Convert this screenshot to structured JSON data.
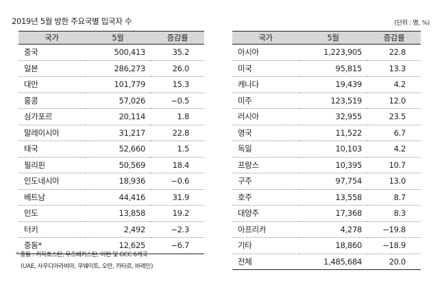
{
  "title": "2019년 5월 방한 주요국별 입국자 수",
  "unit": "(단위 : 명, %)",
  "headers": {
    "country": "국가",
    "may": "5월",
    "rate": "증감률"
  },
  "left_rows": [
    {
      "country": "중국",
      "may": "500,413",
      "rate": "35.2"
    },
    {
      "country": "일본",
      "may": "286,273",
      "rate": "26.0"
    },
    {
      "country": "대만",
      "may": "101,779",
      "rate": "15.3"
    },
    {
      "country": "홍콩",
      "may": "57,026",
      "rate": "−0.5"
    },
    {
      "country": "싱가포르",
      "may": "20,114",
      "rate": "1.8"
    },
    {
      "country": "말레이시아",
      "may": "31,217",
      "rate": "22.8"
    },
    {
      "country": "태국",
      "may": "52,660",
      "rate": "1.5"
    },
    {
      "country": "필리핀",
      "may": "50,569",
      "rate": "18.4"
    },
    {
      "country": "인도네시아",
      "may": "18,936",
      "rate": "−0.6"
    },
    {
      "country": "베트남",
      "may": "44,416",
      "rate": "31.9"
    },
    {
      "country": "인도",
      "may": "13,858",
      "rate": "19.2"
    },
    {
      "country": "터키",
      "may": "2,492",
      "rate": "−2.3"
    },
    {
      "country": "중동*",
      "may": "12,625",
      "rate": "−6.7"
    }
  ],
  "right_rows": [
    {
      "country": "아시아",
      "may": "1,223,905",
      "rate": "22.8"
    },
    {
      "country": "미국",
      "may": "95,815",
      "rate": "13.3"
    },
    {
      "country": "캐나다",
      "may": "19,439",
      "rate": "4.2"
    },
    {
      "country": "미주",
      "may": "123,519",
      "rate": "12.0"
    },
    {
      "country": "러시아",
      "may": "32,955",
      "rate": "23.5"
    },
    {
      "country": "영국",
      "may": "11,522",
      "rate": "6.7"
    },
    {
      "country": "독일",
      "may": "10,103",
      "rate": "4.2"
    },
    {
      "country": "프랑스",
      "may": "10,395",
      "rate": "10.7"
    },
    {
      "country": "구주",
      "may": "97,754",
      "rate": "13.0"
    },
    {
      "country": "호주",
      "may": "13,558",
      "rate": "8.7"
    },
    {
      "country": "대양주",
      "may": "17,368",
      "rate": "8.3"
    },
    {
      "country": "아프리카",
      "may": "4,278",
      "rate": "−19.8"
    },
    {
      "country": "기타",
      "may": "18,860",
      "rate": "−18.9"
    },
    {
      "country": "전체",
      "may": "1,485,684",
      "rate": "20.0"
    }
  ],
  "footnote": {
    "line1": "* 중동 : 카자흐스탄, 우즈베키스탄, 이란 및 GCC 6개국",
    "line2": "(UAE, 사우디아라비아, 쿠웨이트, 오만, 카타르, 바레인)"
  }
}
